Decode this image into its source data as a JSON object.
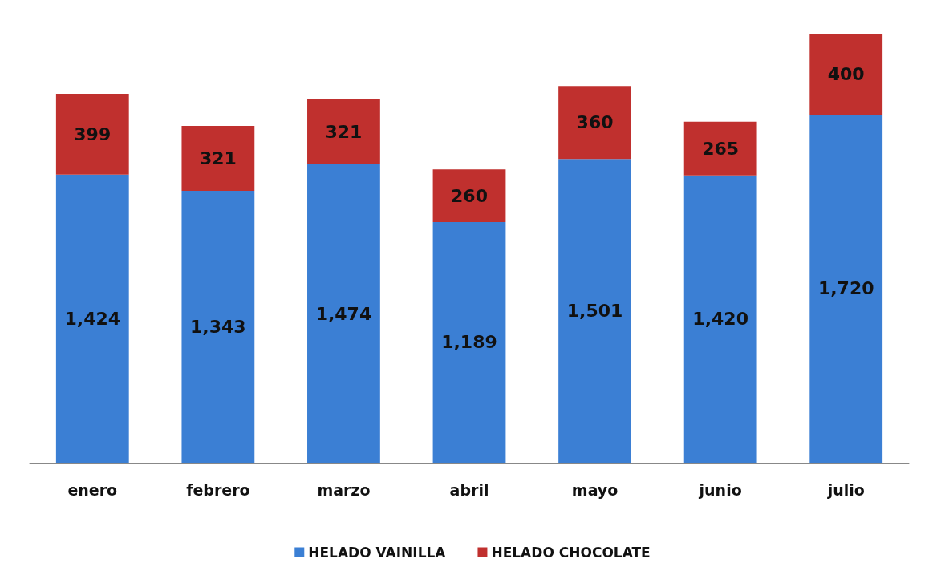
{
  "chart_data": {
    "type": "bar",
    "stacked": true,
    "legend": "bottom",
    "categories": [
      "enero",
      "febrero",
      "marzo",
      "abril",
      "mayo",
      "junio",
      "julio"
    ],
    "series": [
      {
        "name": "HELADO VAINILLA",
        "color": "#3b7fd4",
        "values": [
          1424,
          1343,
          1474,
          1189,
          1501,
          1420,
          1720
        ],
        "value_labels": [
          "1,424",
          "1,343",
          "1,474",
          "1,189",
          "1,501",
          "1,420",
          "1,720"
        ]
      },
      {
        "name": "HELADO CHOCOLATE",
        "color": "#c0302e",
        "values": [
          399,
          321,
          321,
          260,
          360,
          265,
          400
        ],
        "value_labels": [
          "399",
          "321",
          "321",
          "260",
          "360",
          "265",
          "400"
        ]
      }
    ]
  }
}
